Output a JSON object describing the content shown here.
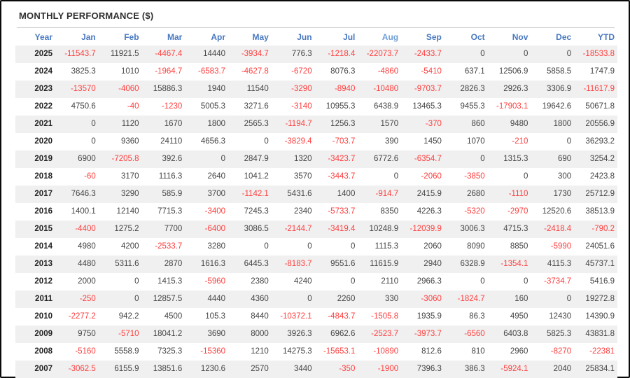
{
  "title": "MONTHLY PERFORMANCE ($)",
  "colors": {
    "header_text": "#4878c0",
    "header_text_highlight": "#6f9fd8",
    "negative": "#ff3e3e",
    "positive": "#444444",
    "year_text": "#222222",
    "stripe": "#f0f0f0",
    "rule": "#d0d0d0"
  },
  "chart_data": {
    "type": "table",
    "columns": [
      "Year",
      "Jan",
      "Feb",
      "Mar",
      "Apr",
      "May",
      "Jun",
      "Jul",
      "Aug",
      "Sep",
      "Oct",
      "Nov",
      "Dec",
      "YTD"
    ],
    "highlight_column": "Aug",
    "rows": [
      {
        "year": 2025,
        "values": [
          -11543.7,
          11921.5,
          -4467.4,
          14440,
          -3934.7,
          776.3,
          -1218.4,
          -22073.7,
          -2433.7,
          0,
          0,
          0,
          -18533.8
        ]
      },
      {
        "year": 2024,
        "values": [
          3825.3,
          1010,
          -1964.7,
          -6583.7,
          -4627.8,
          -6720,
          8076.3,
          -4860,
          -5410,
          637.1,
          12506.9,
          5858.5,
          1747.9
        ]
      },
      {
        "year": 2023,
        "values": [
          -13570,
          -4060,
          15886.3,
          1940,
          11540,
          -3290,
          -8940,
          -10480,
          -9703.7,
          2826.3,
          2926.3,
          3306.9,
          -11617.9
        ]
      },
      {
        "year": 2022,
        "values": [
          4750.6,
          -40,
          -1230,
          5005.3,
          3271.6,
          -3140,
          10955.3,
          6438.9,
          13465.3,
          9455.3,
          -17903.1,
          19642.6,
          50671.8
        ]
      },
      {
        "year": 2021,
        "values": [
          0,
          1120,
          1670,
          1800,
          2565.3,
          -1194.7,
          1256.3,
          1570,
          -370,
          860,
          9480,
          1800,
          20556.9
        ]
      },
      {
        "year": 2020,
        "values": [
          0,
          9360,
          24110,
          4656.3,
          0,
          -3829.4,
          -703.7,
          390,
          1450,
          1070,
          -210,
          0,
          36293.2
        ]
      },
      {
        "year": 2019,
        "values": [
          6900,
          -7205.8,
          392.6,
          0,
          2847.9,
          1320,
          -3423.7,
          6772.6,
          -6354.7,
          0,
          1315.3,
          690,
          3254.2
        ]
      },
      {
        "year": 2018,
        "values": [
          -60,
          3170,
          1116.3,
          2640,
          1041.2,
          3570,
          -3443.7,
          0,
          -2060,
          -3850,
          0,
          300,
          2423.8
        ]
      },
      {
        "year": 2017,
        "values": [
          7646.3,
          3290,
          585.9,
          3700,
          -1142.1,
          5431.6,
          1400,
          -914.7,
          2415.9,
          2680,
          -1110,
          1730,
          25712.9
        ]
      },
      {
        "year": 2016,
        "values": [
          1400.1,
          12140,
          7715.3,
          -3400,
          7245.3,
          2340,
          -5733.7,
          8350,
          4226.3,
          -5320,
          -2970,
          12520.6,
          38513.9
        ]
      },
      {
        "year": 2015,
        "values": [
          -4400,
          1275.2,
          7700,
          -6400,
          3086.5,
          -2144.7,
          -3419.4,
          10248.9,
          -12039.9,
          3006.3,
          4715.3,
          -2418.4,
          -790.2
        ]
      },
      {
        "year": 2014,
        "values": [
          4980,
          4200,
          -2533.7,
          3280,
          0,
          0,
          0,
          1115.3,
          2060,
          8090,
          8850,
          -5990,
          24051.6
        ]
      },
      {
        "year": 2013,
        "values": [
          4480,
          5311.6,
          2870,
          1616.3,
          6445.3,
          -8183.7,
          9551.6,
          11615.9,
          2940,
          6328.9,
          -1354.1,
          4115.3,
          45737.1
        ]
      },
      {
        "year": 2012,
        "values": [
          2000,
          0,
          1415.3,
          -5960,
          2380,
          4240,
          0,
          2110,
          2966.3,
          0,
          0,
          -3734.7,
          5416.9
        ]
      },
      {
        "year": 2011,
        "values": [
          -250,
          0,
          12857.5,
          4440,
          4360,
          0,
          2260,
          330,
          -3060,
          -1824.7,
          160,
          0,
          19272.8
        ]
      },
      {
        "year": 2010,
        "values": [
          -2277.2,
          942.2,
          4500,
          105.3,
          8440,
          -10372.1,
          -4843.7,
          -1505.8,
          1935.9,
          86.3,
          4950,
          12430,
          14390.9
        ]
      },
      {
        "year": 2009,
        "values": [
          9750,
          -5710,
          18041.2,
          3690,
          8000,
          3926.3,
          6962.6,
          -2523.7,
          -3973.7,
          -6560,
          6403.8,
          5825.3,
          43831.8
        ]
      },
      {
        "year": 2008,
        "values": [
          -5160,
          5558.9,
          7325.3,
          -15360,
          1210,
          14275.3,
          -15653.1,
          -10890,
          812.6,
          810,
          2960,
          -8270,
          -22381
        ]
      },
      {
        "year": 2007,
        "values": [
          -3062.5,
          6155.9,
          13851.6,
          1230.6,
          2570,
          3440,
          -350,
          -1900,
          7396.3,
          386.3,
          -5924.1,
          2040,
          25834.1
        ]
      }
    ]
  }
}
